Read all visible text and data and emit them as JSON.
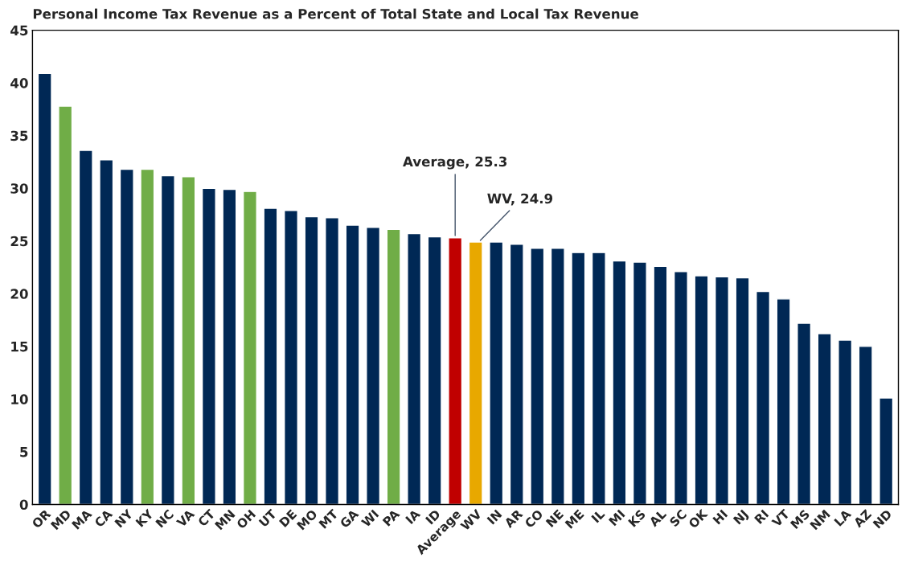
{
  "chart_data": {
    "type": "bar",
    "title": "Personal Income Tax Revenue as a Percent of Total State and Local Tax Revenue",
    "categories": [
      "OR",
      "MD",
      "MA",
      "CA",
      "NY",
      "KY",
      "NC",
      "VA",
      "CT",
      "MN",
      "OH",
      "UT",
      "DE",
      "MO",
      "MT",
      "GA",
      "WI",
      "PA",
      "IA",
      "ID",
      "Average",
      "WV",
      "IN",
      "AR",
      "CO",
      "NE",
      "ME",
      "IL",
      "MI",
      "KS",
      "AL",
      "SC",
      "OK",
      "HI",
      "NJ",
      "RI",
      "VT",
      "MS",
      "NM",
      "LA",
      "AZ",
      "ND"
    ],
    "values": [
      40.9,
      37.8,
      33.6,
      32.7,
      31.8,
      31.8,
      31.2,
      31.1,
      30.0,
      29.9,
      29.7,
      28.1,
      27.9,
      27.3,
      27.2,
      26.5,
      26.3,
      26.1,
      25.7,
      25.4,
      25.3,
      24.9,
      24.9,
      24.7,
      24.3,
      24.3,
      23.9,
      23.9,
      23.1,
      23.0,
      22.6,
      22.1,
      21.7,
      21.6,
      21.5,
      20.2,
      19.5,
      17.2,
      16.2,
      15.6,
      15.0,
      10.1
    ],
    "colors": [
      "#002855",
      "#70ad47",
      "#002855",
      "#002855",
      "#002855",
      "#70ad47",
      "#002855",
      "#70ad47",
      "#002855",
      "#002855",
      "#70ad47",
      "#002855",
      "#002855",
      "#002855",
      "#002855",
      "#002855",
      "#002855",
      "#70ad47",
      "#002855",
      "#002855",
      "#c00000",
      "#e8a800",
      "#002855",
      "#002855",
      "#002855",
      "#002855",
      "#002855",
      "#002855",
      "#002855",
      "#002855",
      "#002855",
      "#002855",
      "#002855",
      "#002855",
      "#002855",
      "#002855",
      "#002855",
      "#002855",
      "#002855",
      "#002855",
      "#002855",
      "#002855"
    ],
    "ylim": [
      0,
      45
    ],
    "yticks": [
      0,
      5,
      10,
      15,
      20,
      25,
      30,
      35,
      40,
      45
    ],
    "grid": false,
    "legend": false,
    "annotations": [
      {
        "text": "Average, 25.3",
        "x": "Average",
        "y": 25.3
      },
      {
        "text": "WV, 24.9",
        "x": "WV",
        "y": 24.9
      }
    ]
  }
}
